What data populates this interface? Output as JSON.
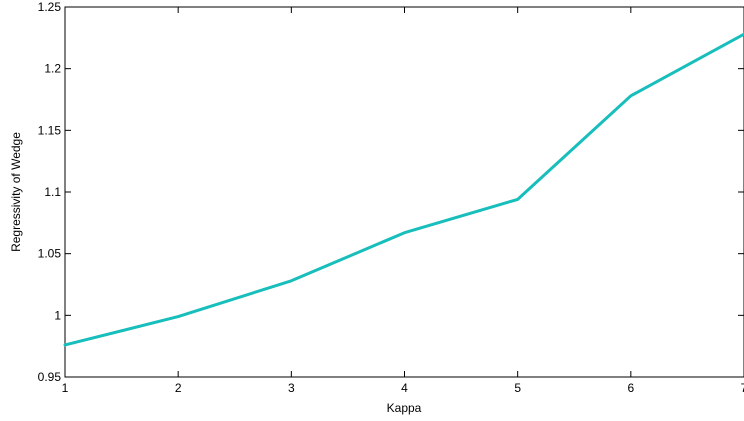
{
  "chart_data": {
    "type": "line",
    "title": "",
    "xlabel": "Kappa",
    "ylabel": "Regressivity of Wedge",
    "xlim": [
      1,
      7
    ],
    "ylim": [
      0.95,
      1.25
    ],
    "x_ticks": [
      "1",
      "2",
      "3",
      "4",
      "5",
      "6",
      "7"
    ],
    "y_ticks": [
      "0.95",
      "1",
      "1.05",
      "1.1",
      "1.15",
      "1.2",
      "1.25"
    ],
    "grid": false,
    "legend": "none",
    "series": [
      {
        "color": "#17bebb",
        "x": [
          1,
          2,
          3,
          4,
          5,
          6,
          7
        ],
        "y": [
          0.976,
          0.999,
          1.028,
          1.067,
          1.094,
          1.178,
          1.228
        ]
      }
    ]
  }
}
